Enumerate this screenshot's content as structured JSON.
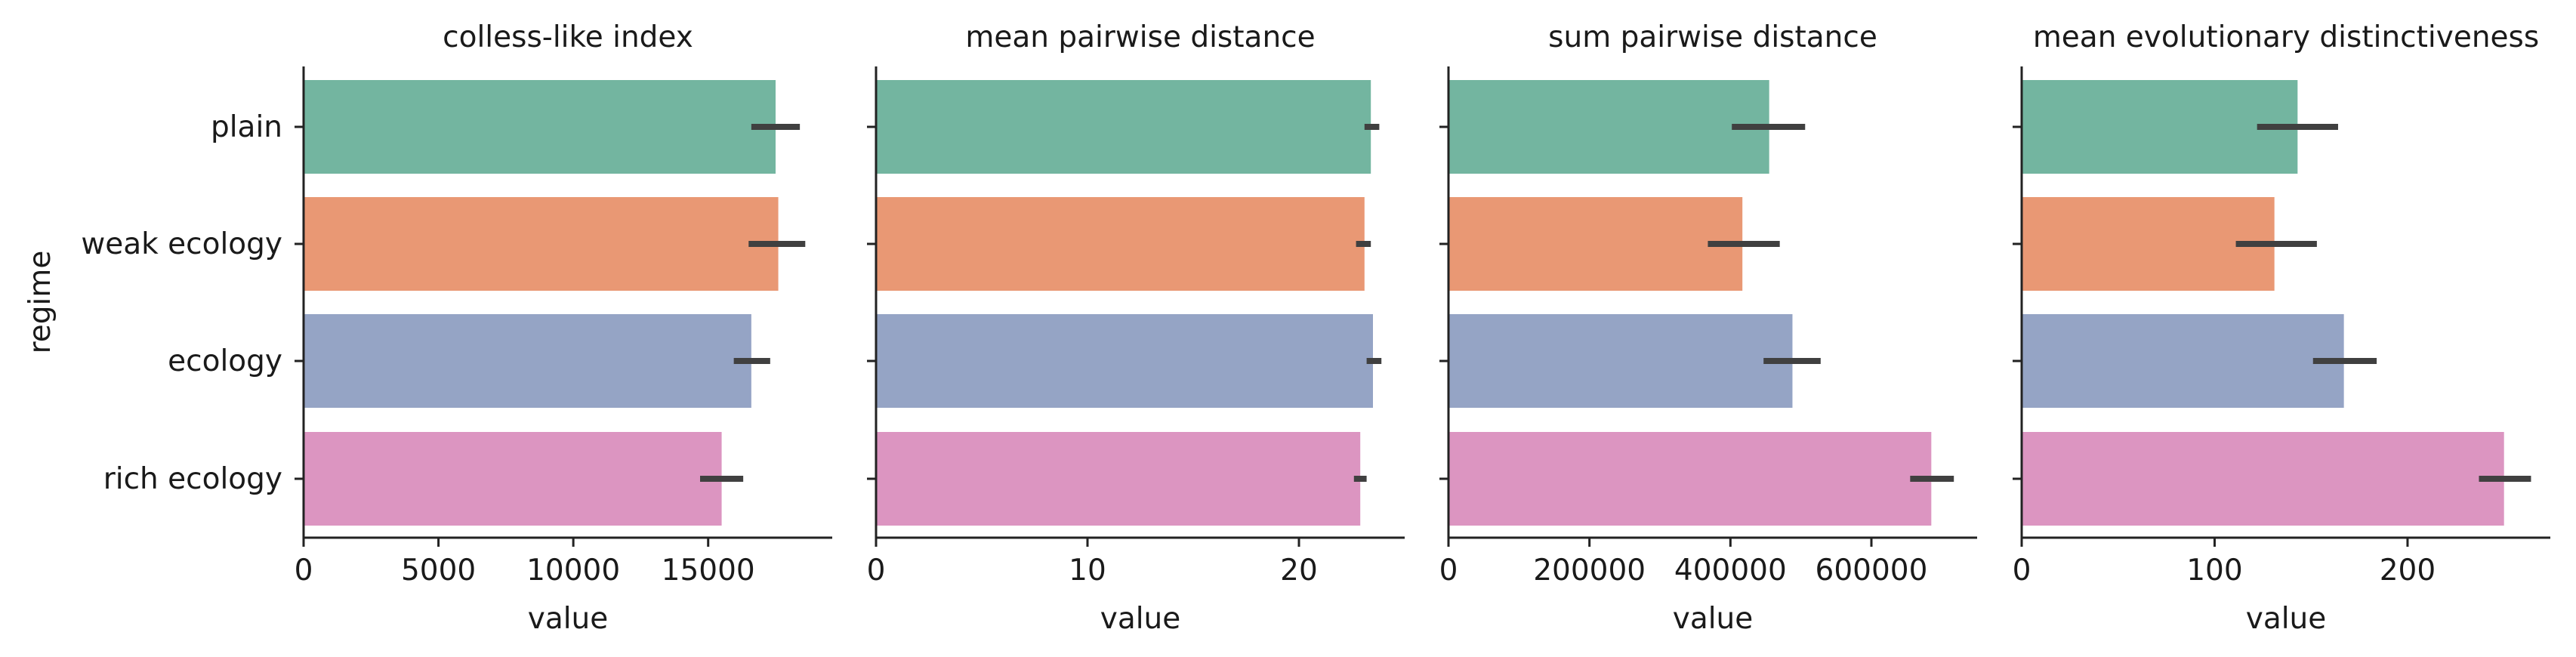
{
  "chart_data": [
    {
      "type": "bar",
      "orientation": "horizontal",
      "title": "colless-like index",
      "xlabel": "value",
      "ylabel": "regime",
      "categories": [
        "plain",
        "weak ecology",
        "ecology",
        "rich ecology"
      ],
      "values": [
        17500,
        17600,
        16600,
        15500
      ],
      "error_low": [
        16600,
        16500,
        15950,
        14700
      ],
      "error_high": [
        18400,
        18600,
        17300,
        16300
      ],
      "xlim": [
        0,
        19600
      ],
      "xticks": [
        0,
        5000,
        10000,
        15000
      ],
      "colors": [
        "#73b5a0",
        "#e99874",
        "#95a4c5",
        "#dc95c1"
      ],
      "errorbar_color": "#404040",
      "grid": false
    },
    {
      "type": "bar",
      "orientation": "horizontal",
      "title": "mean pairwise distance",
      "xlabel": "value",
      "ylabel": "",
      "categories": [
        "plain",
        "weak ecology",
        "ecology",
        "rich ecology"
      ],
      "values": [
        23.4,
        23.1,
        23.5,
        22.9
      ],
      "error_low": [
        23.1,
        22.7,
        23.2,
        22.6
      ],
      "error_high": [
        23.8,
        23.4,
        23.9,
        23.2
      ],
      "xlim": [
        0,
        25
      ],
      "xticks": [
        0,
        10,
        20
      ],
      "colors": [
        "#73b5a0",
        "#e99874",
        "#95a4c5",
        "#dc95c1"
      ],
      "errorbar_color": "#404040",
      "grid": false
    },
    {
      "type": "bar",
      "orientation": "horizontal",
      "title": "sum pairwise distance",
      "xlabel": "value",
      "ylabel": "",
      "categories": [
        "plain",
        "weak ecology",
        "ecology",
        "rich ecology"
      ],
      "values": [
        455000,
        417000,
        488000,
        685000
      ],
      "error_low": [
        402000,
        368000,
        447000,
        655000
      ],
      "error_high": [
        506000,
        470000,
        528000,
        717000
      ],
      "xlim": [
        0,
        750000
      ],
      "xticks": [
        0,
        200000,
        400000,
        600000
      ],
      "colors": [
        "#73b5a0",
        "#e99874",
        "#95a4c5",
        "#dc95c1"
      ],
      "errorbar_color": "#404040",
      "grid": false
    },
    {
      "type": "bar",
      "orientation": "horizontal",
      "title": "mean evolutionary distinctiveness",
      "xlabel": "value",
      "ylabel": "",
      "categories": [
        "plain",
        "weak ecology",
        "ecology",
        "rich ecology"
      ],
      "values": [
        143,
        131,
        167,
        250
      ],
      "error_low": [
        122,
        111,
        151,
        237
      ],
      "error_high": [
        164,
        153,
        184,
        264
      ],
      "xlim": [
        0,
        274
      ],
      "xticks": [
        0,
        100,
        200
      ],
      "colors": [
        "#73b5a0",
        "#e99874",
        "#95a4c5",
        "#dc95c1"
      ],
      "errorbar_color": "#404040",
      "grid": false
    }
  ]
}
